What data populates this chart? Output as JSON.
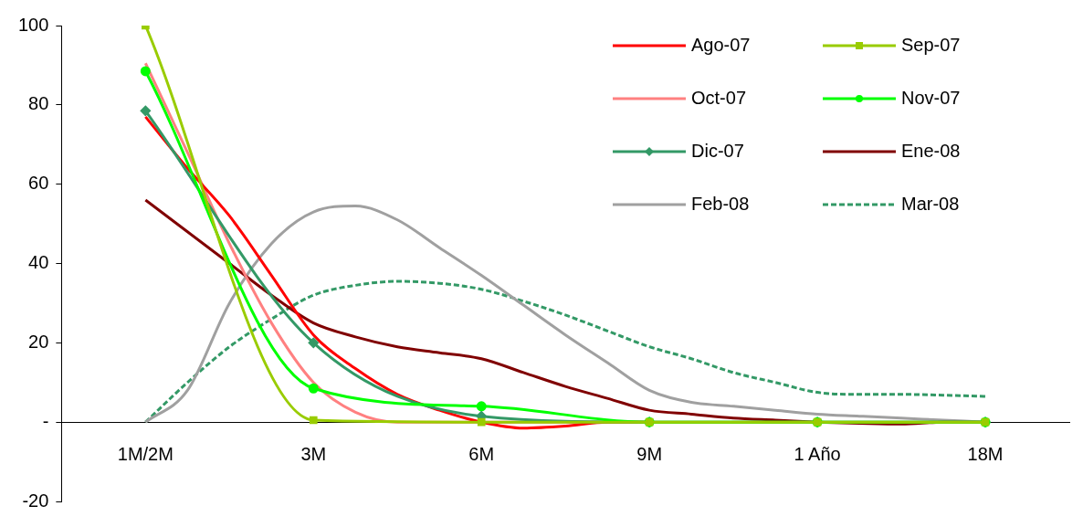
{
  "chart_data": {
    "type": "line",
    "categories": [
      "1M/2M",
      null,
      null,
      null,
      "3M",
      null,
      null,
      null,
      "6M",
      null,
      null,
      null,
      "9M",
      null,
      null,
      null,
      "1 Año",
      null,
      null,
      null,
      "18M"
    ],
    "ylim": [
      -20,
      100
    ],
    "yticks": [
      -20,
      {
        "value": 0,
        "label": "-"
      },
      20,
      40,
      60,
      80,
      100
    ],
    "grid": false,
    "legend": "top right",
    "series": [
      {
        "name": "Ago-07",
        "color": "#ff0000",
        "values": [
          77,
          64,
          52,
          37,
          22,
          13.5,
          7,
          3,
          0,
          -1.5,
          -1,
          0,
          0,
          null,
          null,
          null,
          null,
          null,
          null,
          null,
          null
        ]
      },
      {
        "name": "Sep-07",
        "color": "#99cc00",
        "marker": "square",
        "values": [
          100,
          null,
          null,
          null,
          0.5,
          null,
          null,
          null,
          0,
          null,
          null,
          null,
          0,
          null,
          null,
          null,
          0,
          null,
          null,
          null,
          0
        ]
      },
      {
        "name": "Oct-07",
        "color": "#ff8080",
        "values": [
          90.5,
          68,
          45,
          25,
          10,
          2.5,
          0,
          0,
          0,
          0,
          0,
          0,
          0,
          null,
          null,
          null,
          null,
          null,
          null,
          null,
          null
        ]
      },
      {
        "name": "Nov-07",
        "color": "#00ff00",
        "marker": "circle",
        "values": [
          88.5,
          null,
          null,
          null,
          8.5,
          null,
          null,
          null,
          4,
          null,
          null,
          null,
          0,
          null,
          null,
          null,
          0,
          null,
          null,
          null,
          0
        ]
      },
      {
        "name": "Dic-07",
        "color": "#339966",
        "marker": "diamond",
        "values": [
          78.5,
          null,
          null,
          null,
          20,
          null,
          null,
          null,
          1.5,
          null,
          null,
          null,
          0,
          null,
          null,
          null,
          0,
          null,
          null,
          null,
          0
        ]
      },
      {
        "name": "Ene-08",
        "color": "#800000",
        "values": [
          56,
          48,
          40,
          32,
          25,
          21.5,
          19,
          17.5,
          16,
          12.5,
          9,
          6,
          3,
          2,
          1,
          0.5,
          0,
          -0.3,
          -0.5,
          0,
          0
        ]
      },
      {
        "name": "Feb-08",
        "color": "#a0a0a0",
        "values": [
          0,
          8,
          30,
          45,
          53,
          54.5,
          51,
          44,
          37,
          29.5,
          22,
          15,
          8,
          5,
          4,
          3,
          2,
          1.5,
          1,
          0.5,
          0
        ]
      },
      {
        "name": "Mar-08",
        "color": "#339966",
        "line_style": "dashed",
        "values": [
          0,
          10,
          19,
          26,
          32,
          34.5,
          35.5,
          35,
          33.5,
          30.5,
          27,
          23,
          19,
          16,
          12.5,
          10,
          7.5,
          7,
          7,
          6.8,
          6.5
        ]
      }
    ]
  }
}
